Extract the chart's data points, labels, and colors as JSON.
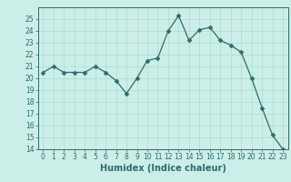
{
  "x": [
    0,
    1,
    2,
    3,
    4,
    5,
    6,
    7,
    8,
    9,
    10,
    11,
    12,
    13,
    14,
    15,
    16,
    17,
    18,
    19,
    20,
    21,
    22,
    23
  ],
  "y": [
    20.5,
    21.0,
    20.5,
    20.5,
    20.5,
    21.0,
    20.5,
    19.8,
    18.7,
    20.0,
    21.5,
    21.7,
    24.0,
    25.3,
    23.2,
    24.1,
    24.3,
    23.2,
    22.8,
    22.2,
    20.0,
    17.5,
    15.2,
    14.0
  ],
  "xlabel": "Humidex (Indice chaleur)",
  "ylim": [
    14,
    26
  ],
  "xlim": [
    -0.5,
    23.5
  ],
  "yticks": [
    14,
    15,
    16,
    17,
    18,
    19,
    20,
    21,
    22,
    23,
    24,
    25
  ],
  "xticks": [
    0,
    1,
    2,
    3,
    4,
    5,
    6,
    7,
    8,
    9,
    10,
    11,
    12,
    13,
    14,
    15,
    16,
    17,
    18,
    19,
    20,
    21,
    22,
    23
  ],
  "line_color": "#2e6b6b",
  "marker": "D",
  "marker_size": 2.5,
  "bg_color": "#cceee8",
  "grid_color": "#aaddcc",
  "tick_label_fontsize": 5.5,
  "xlabel_fontsize": 7.0
}
